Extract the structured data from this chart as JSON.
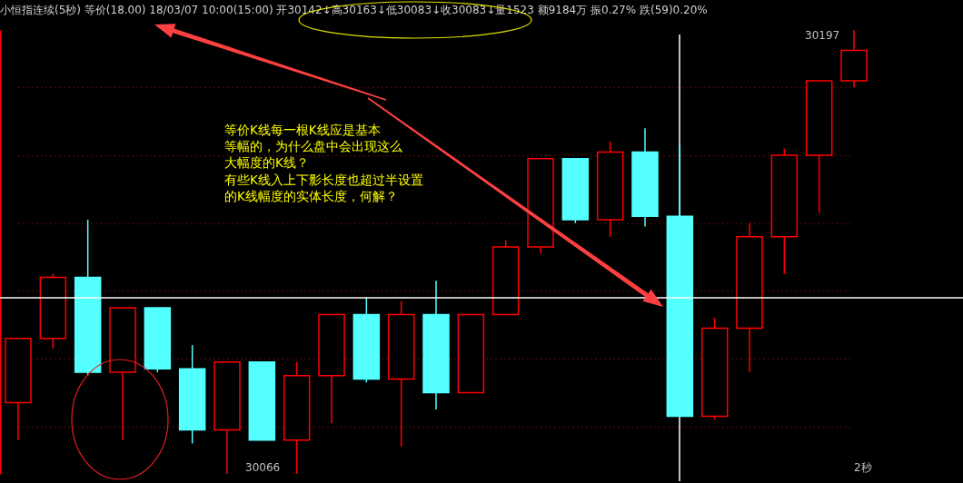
{
  "chart_data": {
    "type": "candlestick",
    "title": "小恒指连续(5秒) 等价(18.00) 18/03/07 10:00(15:00) 开30142↓高30163↓低30083↓收30083↓量1523 额9184万 振0.27% 跌(59)0.20%",
    "categories": [
      null,
      null,
      null,
      null,
      null,
      null,
      null,
      null,
      null,
      null,
      null,
      null,
      null,
      null,
      null,
      null,
      null,
      null,
      null,
      null,
      null,
      null,
      null,
      null,
      null
    ],
    "ohlc": [
      [
        30087,
        30106,
        30076,
        30106
      ],
      [
        30106,
        30125,
        30103,
        30124
      ],
      [
        30124,
        30141,
        30095,
        30096
      ],
      [
        30096,
        30115,
        30076,
        30115
      ],
      [
        30115,
        30115,
        30096,
        30097
      ],
      [
        30097,
        30104,
        30075,
        30079
      ],
      [
        30079,
        30099,
        30066,
        30099
      ],
      [
        30099,
        30099,
        30076,
        30076
      ],
      [
        30076,
        30099,
        30066,
        30095
      ],
      [
        30095,
        30113,
        30081,
        30113
      ],
      [
        30113,
        30118,
        30093,
        30094
      ],
      [
        30094,
        30117,
        30074,
        30113
      ],
      [
        30113,
        30123,
        30085,
        30090
      ],
      [
        30090,
        30113,
        30090,
        30113
      ],
      [
        30113,
        30135,
        30113,
        30133
      ],
      [
        30133,
        30159,
        30131,
        30159
      ],
      [
        30159,
        30159,
        30140,
        30141
      ],
      [
        30141,
        30164,
        30136,
        30161
      ],
      [
        30161,
        30168,
        30139,
        30142
      ],
      [
        30142,
        30163,
        30083,
        30083
      ],
      [
        30083,
        30112,
        30082,
        30109
      ],
      [
        30109,
        30140,
        30096,
        30136
      ],
      [
        30136,
        30162,
        30125,
        30160
      ],
      [
        30160,
        30182,
        30143,
        30182
      ],
      [
        30182,
        30197,
        30180,
        30191
      ]
    ],
    "colors": [
      "#ff0000",
      "#ff0000",
      "#54ffff",
      "#ff0000",
      "#54ffff",
      "#54ffff",
      "#ff0000",
      "#54ffff",
      "#ff0000",
      "#ff0000",
      "#54ffff",
      "#ff0000",
      "#54ffff",
      "#ff0000",
      "#ff0000",
      "#ff0000",
      "#54ffff",
      "#ff0000",
      "#54ffff",
      "#54ffff",
      "#ff0000",
      "#ff0000",
      "#ff0000",
      "#ff0000",
      "#ff0000"
    ],
    "ref_lines": [
      {
        "axis": "y",
        "value": 30118,
        "color": "#ffffff"
      }
    ],
    "yticks": [
      {
        "value": 30080,
        "label": null
      },
      {
        "value": 30100,
        "label": null
      },
      {
        "value": 30120,
        "label": null
      },
      {
        "value": 30140,
        "label": null
      },
      {
        "value": 30160,
        "label": null
      },
      {
        "value": 30180,
        "label": null
      }
    ],
    "grid": true,
    "annotations": [
      "等价K线每一根K线应是基本",
      "等幅的，为什么盘中会出现这么",
      "大幅度的K线？",
      "有些K线入上下影长度也超过半设置",
      "的K线幅度的实体长度，何解？",
      "30197",
      "30066",
      "2秒"
    ]
  }
}
